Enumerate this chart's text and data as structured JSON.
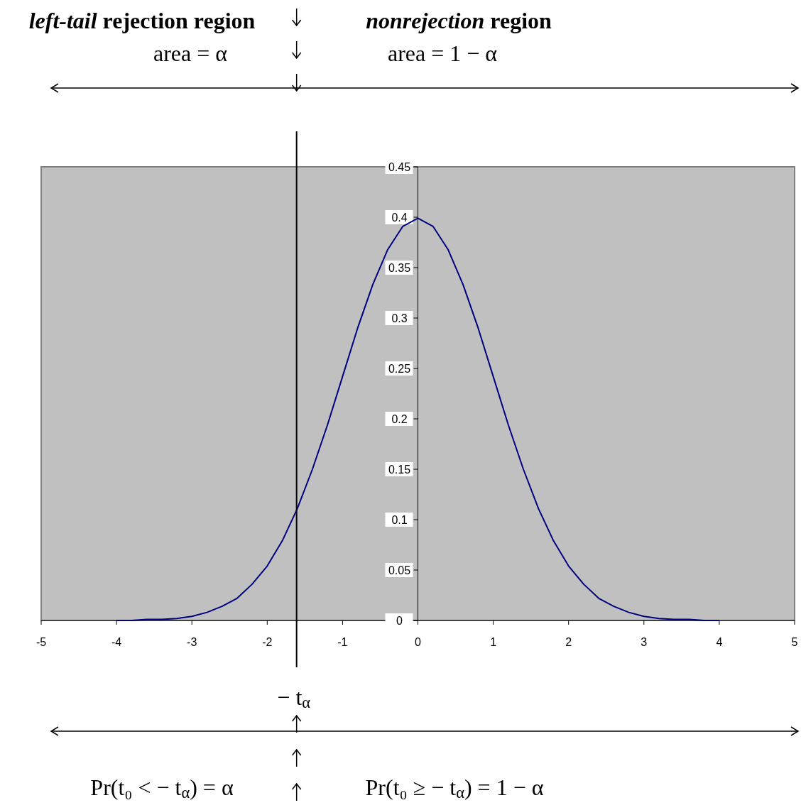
{
  "chart_data": {
    "type": "line",
    "x": [
      -4,
      -3.8,
      -3.6,
      -3.4,
      -3.2,
      -3,
      -2.8,
      -2.6,
      -2.4,
      -2.2,
      -2,
      -1.8,
      -1.6,
      -1.4,
      -1.2,
      -1,
      -0.8,
      -0.6,
      -0.4,
      -0.2,
      0,
      0.2,
      0.4,
      0.6,
      0.8,
      1,
      1.2,
      1.4,
      1.6,
      1.8,
      2,
      2.2,
      2.4,
      2.6,
      2.8,
      3,
      3.2,
      3.4,
      3.6,
      3.8,
      4
    ],
    "series": [
      {
        "color": "#000080",
        "values": [
          0.0,
          0.0,
          0.001,
          0.001,
          0.002,
          0.004,
          0.008,
          0.014,
          0.022,
          0.036,
          0.054,
          0.079,
          0.111,
          0.15,
          0.194,
          0.242,
          0.29,
          0.333,
          0.368,
          0.391,
          0.399,
          0.391,
          0.368,
          0.333,
          0.29,
          0.242,
          0.194,
          0.15,
          0.111,
          0.079,
          0.054,
          0.036,
          0.022,
          0.014,
          0.008,
          0.004,
          0.002,
          0.001,
          0.001,
          0.0,
          0.0
        ]
      }
    ],
    "xlim": [
      -5,
      5
    ],
    "xticks": [
      -5,
      -4,
      -3,
      -2,
      -1,
      0,
      1,
      2,
      3,
      4,
      5
    ],
    "ylim": [
      0,
      0.45
    ],
    "yticks": [
      0,
      0.05,
      0.1,
      0.15,
      0.2,
      0.25,
      0.3,
      0.35,
      0.4,
      0.45
    ],
    "grid": false,
    "marker": "none",
    "line_style": "solid",
    "ref_lines": [
      {
        "axis": "x",
        "value": -1.61,
        "label": "− t$_{α}$",
        "color": "#000000"
      }
    ],
    "annotations": [
      "left-tail rejection region",
      "nonrejection region",
      "area = α",
      "area = 1 − α",
      "Pr(t₀ < − t$_{α}$) = α",
      "Pr(t₀ ≥ − t$_{α}$) = 1 − α"
    ]
  }
}
